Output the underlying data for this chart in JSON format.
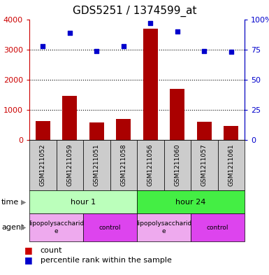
{
  "title": "GDS5251 / 1374599_at",
  "samples": [
    "GSM1211052",
    "GSM1211059",
    "GSM1211051",
    "GSM1211058",
    "GSM1211056",
    "GSM1211060",
    "GSM1211057",
    "GSM1211061"
  ],
  "counts": [
    620,
    1470,
    590,
    700,
    3700,
    1700,
    610,
    470
  ],
  "percentiles": [
    78,
    89,
    74,
    78,
    97,
    90,
    74,
    73
  ],
  "bar_color": "#aa0000",
  "dot_color": "#0000cc",
  "ylim_left": [
    0,
    4000
  ],
  "ylim_right": [
    0,
    100
  ],
  "yticks_left": [
    0,
    1000,
    2000,
    3000,
    4000
  ],
  "yticks_right": [
    0,
    25,
    50,
    75,
    100
  ],
  "yticklabels_left": [
    "0",
    "1000",
    "2000",
    "3000",
    "4000"
  ],
  "yticklabels_right": [
    "0",
    "25",
    "50",
    "75",
    "100%"
  ],
  "time_groups": [
    {
      "label": "hour 1",
      "start": 0,
      "end": 4,
      "color": "#bbffbb"
    },
    {
      "label": "hour 24",
      "start": 4,
      "end": 8,
      "color": "#44ee44"
    }
  ],
  "agent_groups": [
    {
      "label": "lipopolysaccharid\ne",
      "start": 0,
      "end": 2,
      "color": "#eeaaee"
    },
    {
      "label": "control",
      "start": 2,
      "end": 4,
      "color": "#dd44ee"
    },
    {
      "label": "lipopolysaccharid\ne",
      "start": 4,
      "end": 6,
      "color": "#eeaaee"
    },
    {
      "label": "control",
      "start": 6,
      "end": 8,
      "color": "#dd44ee"
    }
  ],
  "axis_left_color": "#cc0000",
  "axis_right_color": "#0000cc",
  "bg_color": "#ffffff",
  "title_fontsize": 11,
  "tick_fontsize": 8,
  "sample_fontsize": 6.5,
  "row_label_fontsize": 8,
  "legend_fontsize": 8
}
